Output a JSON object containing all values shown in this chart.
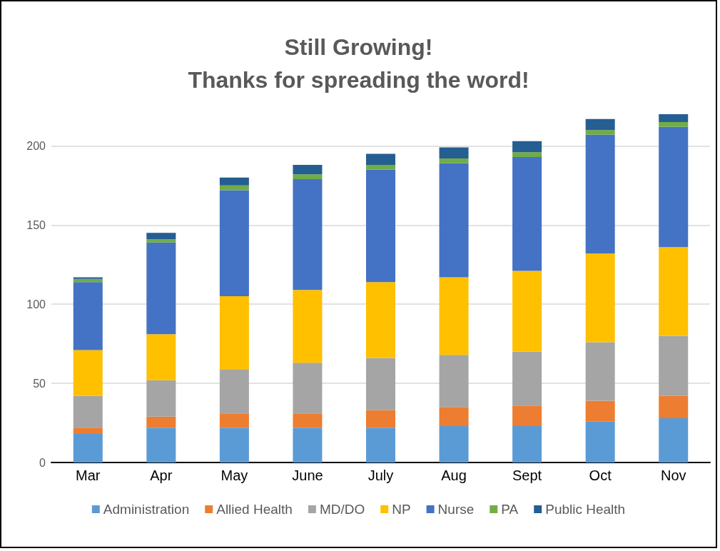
{
  "chart_data": {
    "type": "bar",
    "title": "Still Growing!\nThanks for spreading the word!",
    "categories": [
      "Mar",
      "Apr",
      "May",
      "June",
      "July",
      "Aug",
      "Sept",
      "Oct",
      "Nov"
    ],
    "stacked": true,
    "series": [
      {
        "name": "Administration",
        "color": "#5b9bd5",
        "values": [
          18,
          22,
          22,
          22,
          22,
          23,
          23,
          26,
          28
        ]
      },
      {
        "name": "Allied Health",
        "color": "#ed7d31",
        "values": [
          4,
          7,
          9,
          9,
          11,
          12,
          13,
          13,
          14
        ]
      },
      {
        "name": "MD/DO",
        "color": "#a5a5a5",
        "values": [
          20,
          23,
          28,
          32,
          33,
          33,
          34,
          37,
          38
        ]
      },
      {
        "name": "NP",
        "color": "#ffc000",
        "values": [
          29,
          29,
          46,
          46,
          48,
          49,
          51,
          56,
          56
        ]
      },
      {
        "name": "Nurse",
        "color": "#4472c4",
        "values": [
          43,
          58,
          67,
          70,
          71,
          72,
          72,
          75,
          76
        ]
      },
      {
        "name": "PA",
        "color": "#70ad47",
        "values": [
          2,
          2,
          3,
          3,
          3,
          3,
          3,
          3,
          3
        ]
      },
      {
        "name": "Public Health",
        "color": "#255e91",
        "values": [
          1,
          4,
          5,
          6,
          7,
          7,
          7,
          7,
          5
        ]
      }
    ],
    "ylim": [
      0,
      220
    ],
    "yticks": [
      0,
      50,
      100,
      150,
      200
    ],
    "grid": "y",
    "legend": "bottom"
  }
}
